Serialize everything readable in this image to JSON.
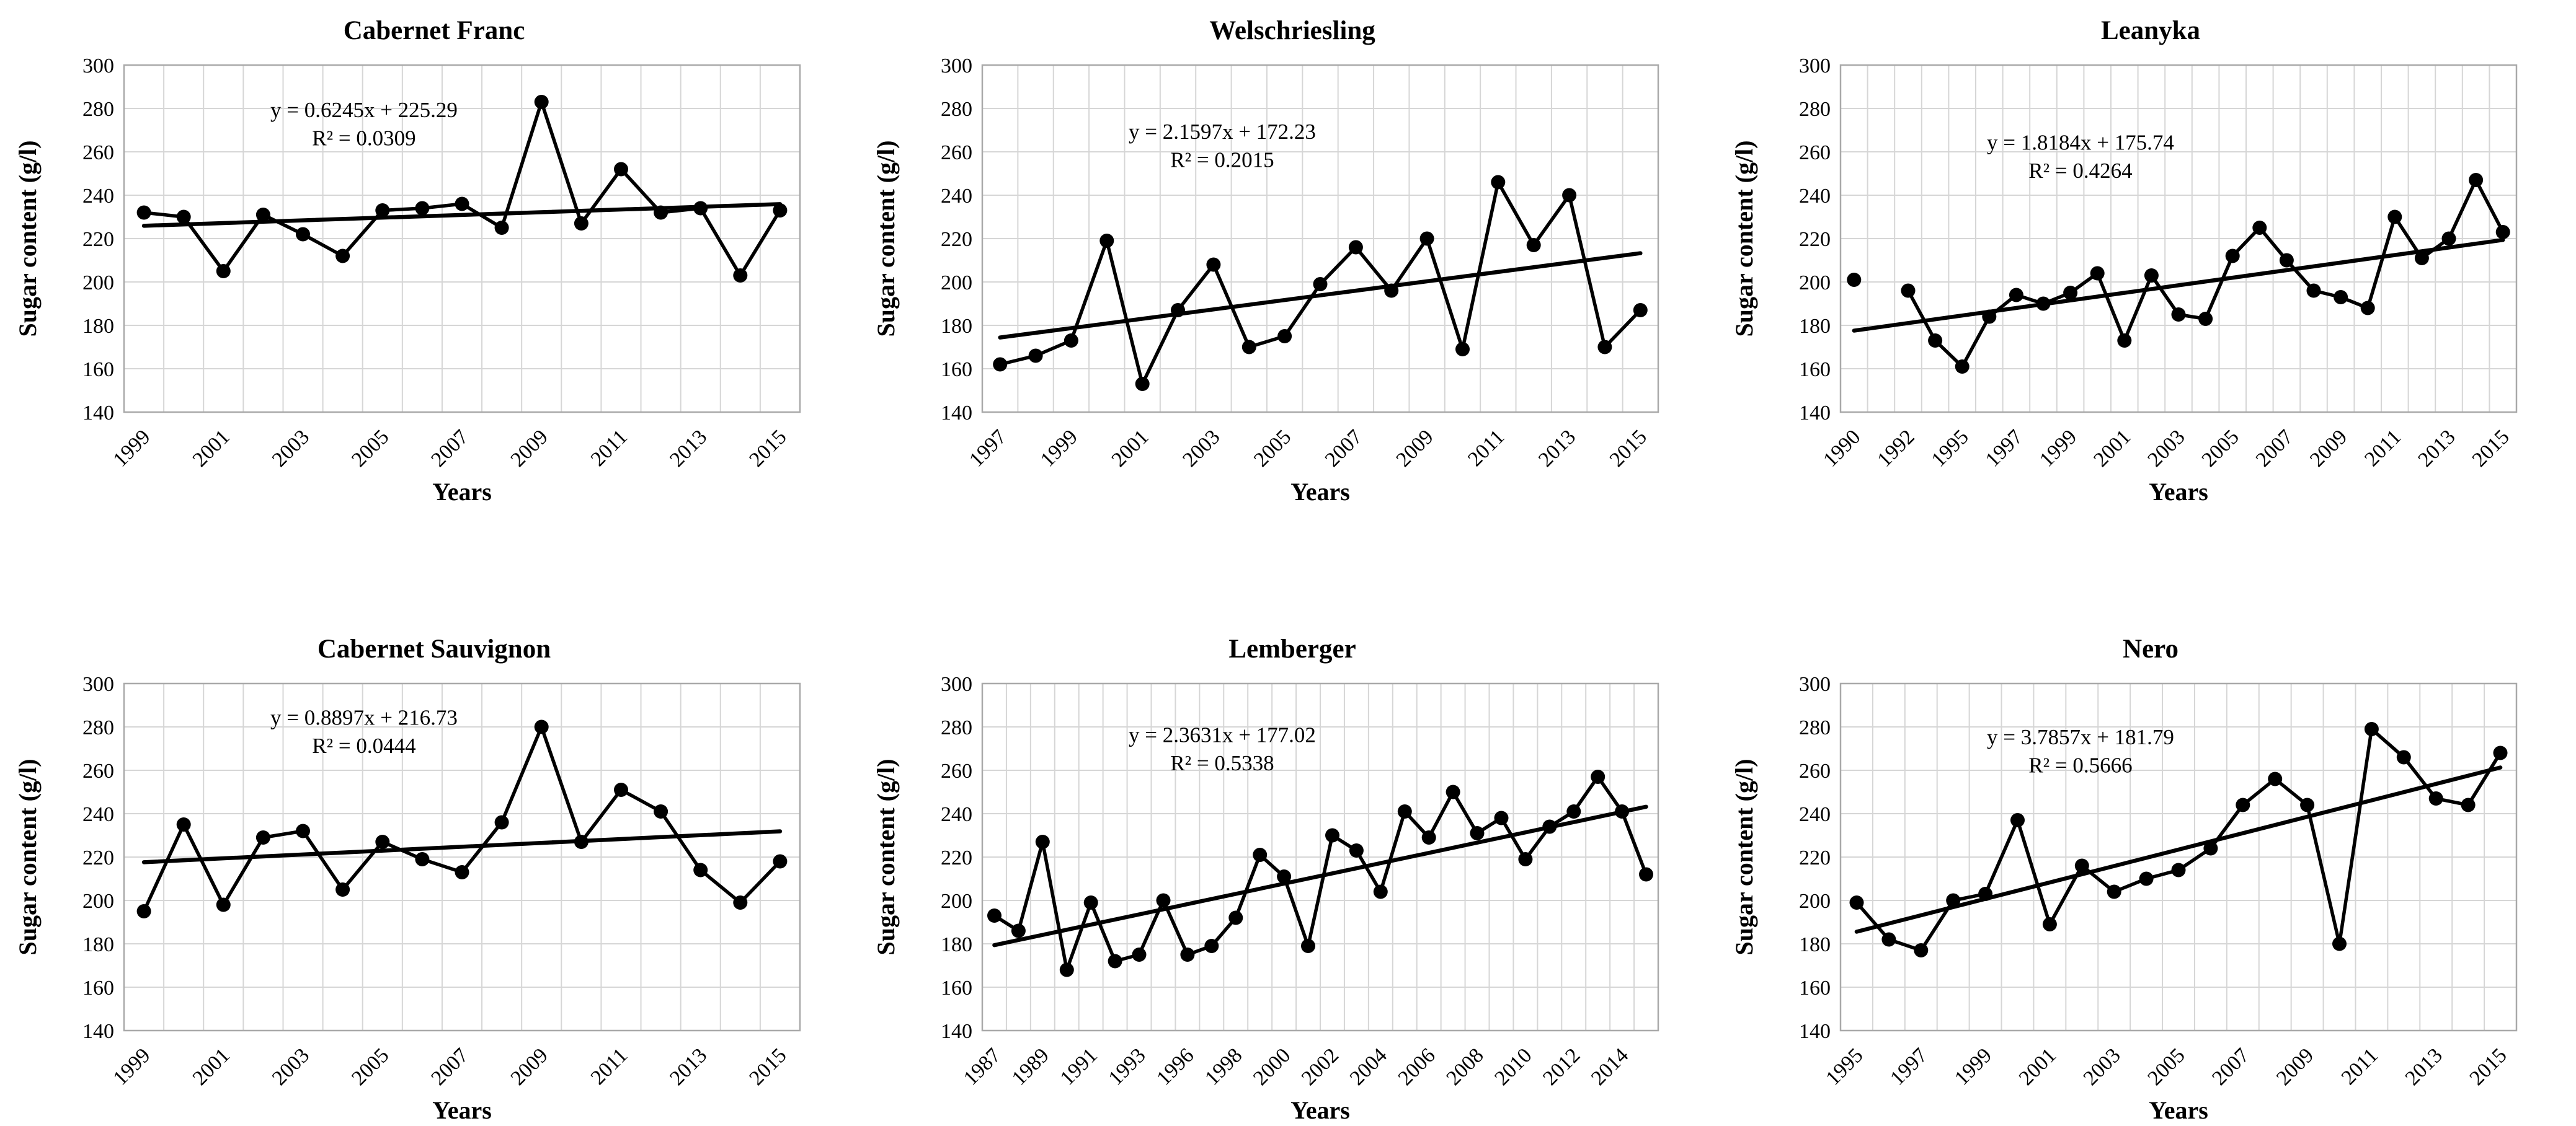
{
  "figure": {
    "description": "Six line charts of grape must sugar content by vintage year with linear trendlines",
    "rows": 2,
    "cols": 3,
    "y_axis_label": "Sugar content (g/l)",
    "x_axis_label": "Years",
    "y_tick_labels": [
      "300",
      "280",
      "260",
      "240",
      "220",
      "200",
      "180",
      "160",
      "140"
    ],
    "colors": {
      "series": "#000000",
      "trend": "#000000",
      "grid": "#d6d6d6",
      "border": "#a9a9a9",
      "background": "#ffffff"
    }
  },
  "chart_data": [
    {
      "type": "line",
      "title": "Cabernet Franc",
      "equation": "y = 0.6245x + 225.29",
      "r_squared": "R² = 0.0309",
      "xlabel": "Years",
      "ylabel": "Sugar content (g/l)",
      "ylim": [
        140,
        300
      ],
      "y_tick_step": 20,
      "grid": "on",
      "legend": "none",
      "years": [
        1999,
        2000,
        2001,
        2002,
        2003,
        2004,
        2005,
        2006,
        2007,
        2008,
        2009,
        2010,
        2011,
        2012,
        2013,
        2014,
        2015
      ],
      "values": [
        232,
        230,
        205,
        231,
        222,
        212,
        233,
        234,
        236,
        225,
        283,
        227,
        252,
        232,
        234,
        203,
        233
      ],
      "x_tick_labels": [
        "1999",
        "2001",
        "2003",
        "2005",
        "2007",
        "2009",
        "2011",
        "2013",
        "2015"
      ],
      "trend_start": 225.91,
      "trend_end": 235.91,
      "eq_v1": 276,
      "eq_v2": 263
    },
    {
      "type": "line",
      "title": "Welschriesling",
      "equation": "y = 2.1597x + 172.23",
      "r_squared": "R² = 0.2015",
      "xlabel": "Years",
      "ylabel": "Sugar content (g/l)",
      "ylim": [
        140,
        300
      ],
      "y_tick_step": 20,
      "grid": "on",
      "legend": "none",
      "years": [
        1997,
        1998,
        1999,
        2000,
        2001,
        2002,
        2003,
        2004,
        2005,
        2006,
        2007,
        2008,
        2009,
        2010,
        2011,
        2012,
        2013,
        2014,
        2015
      ],
      "values": [
        162,
        166,
        173,
        219,
        153,
        187,
        208,
        170,
        175,
        199,
        216,
        196,
        220,
        169,
        246,
        217,
        240,
        170,
        187
      ],
      "x_tick_labels": [
        "1997",
        "1999",
        "2001",
        "2003",
        "2005",
        "2007",
        "2009",
        "2011",
        "2013",
        "2015"
      ],
      "trend_start": 174.39,
      "trend_end": 213.26,
      "eq_v1": 266,
      "eq_v2": 253
    },
    {
      "type": "line",
      "title": "Leanyka",
      "equation": "y = 1.8184x + 175.74",
      "r_squared": "R² = 0.4264",
      "xlabel": "Years",
      "ylabel": "Sugar content (g/l)",
      "ylim": [
        140,
        300
      ],
      "y_tick_step": 20,
      "grid": "on",
      "legend": "none",
      "years": [
        1990,
        1991,
        1992,
        1993,
        1995,
        1996,
        1997,
        1998,
        1999,
        2000,
        2001,
        2002,
        2003,
        2004,
        2005,
        2006,
        2007,
        2008,
        2009,
        2010,
        2011,
        2012,
        2013,
        2014,
        2015
      ],
      "values": [
        201,
        null,
        196,
        173,
        161,
        184,
        194,
        190,
        195,
        204,
        173,
        203,
        185,
        183,
        212,
        225,
        210,
        196,
        193,
        188,
        230,
        211,
        220,
        247,
        223
      ],
      "x_tick_labels": [
        "1990",
        "1992",
        "1995",
        "1997",
        "1999",
        "2001",
        "2003",
        "2005",
        "2007",
        "2009",
        "2011",
        "2013",
        "2015"
      ],
      "trend_start": 177.56,
      "trend_end": 219.38,
      "eq_v1": 261,
      "eq_v2": 248
    },
    {
      "type": "line",
      "title": "Cabernet Sauvignon",
      "equation": "y = 0.8897x + 216.73",
      "r_squared": "R² = 0.0444",
      "xlabel": "Years",
      "ylabel": "Sugar content (g/l)",
      "ylim": [
        140,
        300
      ],
      "y_tick_step": 20,
      "grid": "on",
      "legend": "none",
      "years": [
        1999,
        2000,
        2001,
        2002,
        2003,
        2004,
        2005,
        2006,
        2007,
        2008,
        2009,
        2010,
        2011,
        2012,
        2013,
        2014,
        2015
      ],
      "values": [
        195,
        235,
        198,
        229,
        232,
        205,
        227,
        219,
        213,
        236,
        280,
        227,
        251,
        241,
        214,
        199,
        218
      ],
      "x_tick_labels": [
        "1999",
        "2001",
        "2003",
        "2005",
        "2007",
        "2009",
        "2011",
        "2013",
        "2015"
      ],
      "trend_start": 217.62,
      "trend_end": 231.85,
      "eq_v1": 281,
      "eq_v2": 268
    },
    {
      "type": "line",
      "title": "Lemberger",
      "equation": "y = 2.3631x + 177.02",
      "r_squared": "R² = 0.5338",
      "xlabel": "Years",
      "ylabel": "Sugar content (g/l)",
      "ylim": [
        140,
        300
      ],
      "y_tick_step": 20,
      "grid": "on",
      "legend": "none",
      "years": [
        1987,
        1988,
        1989,
        1990,
        1991,
        1992,
        1993,
        1995,
        1996,
        1997,
        1998,
        1999,
        2000,
        2001,
        2002,
        2003,
        2004,
        2005,
        2006,
        2007,
        2008,
        2009,
        2010,
        2011,
        2012,
        2013,
        2014,
        2015
      ],
      "values": [
        193,
        186,
        227,
        168,
        199,
        172,
        175,
        200,
        175,
        179,
        192,
        221,
        211,
        179,
        230,
        223,
        204,
        241,
        229,
        250,
        231,
        238,
        219,
        234,
        241,
        257,
        241,
        212
      ],
      "x_tick_labels": [
        "1987",
        "1989",
        "1991",
        "1993",
        "1996",
        "1998",
        "2000",
        "2002",
        "2004",
        "2006",
        "2008",
        "2010",
        "2012",
        "2014"
      ],
      "trend_start": 179.38,
      "trend_end": 243.19,
      "eq_v1": 273,
      "eq_v2": 260
    },
    {
      "type": "line",
      "title": "Nero",
      "equation": "y = 3.7857x + 181.79",
      "r_squared": "R² = 0.5666",
      "xlabel": "Years",
      "ylabel": "Sugar content (g/l)",
      "ylim": [
        140,
        300
      ],
      "y_tick_step": 20,
      "grid": "on",
      "legend": "none",
      "years": [
        1995,
        1996,
        1997,
        1998,
        1999,
        2000,
        2001,
        2002,
        2003,
        2004,
        2005,
        2006,
        2007,
        2008,
        2009,
        2010,
        2011,
        2012,
        2013,
        2014,
        2015
      ],
      "values": [
        199,
        182,
        177,
        200,
        203,
        237,
        189,
        216,
        204,
        210,
        214,
        224,
        244,
        256,
        244,
        180,
        279,
        266,
        247,
        244,
        268
      ],
      "x_tick_labels": [
        "1995",
        "1997",
        "1999",
        "2001",
        "2003",
        "2005",
        "2007",
        "2009",
        "2011",
        "2013",
        "2015"
      ],
      "trend_start": 185.57,
      "trend_end": 261.29,
      "eq_v1": 272,
      "eq_v2": 259
    }
  ]
}
